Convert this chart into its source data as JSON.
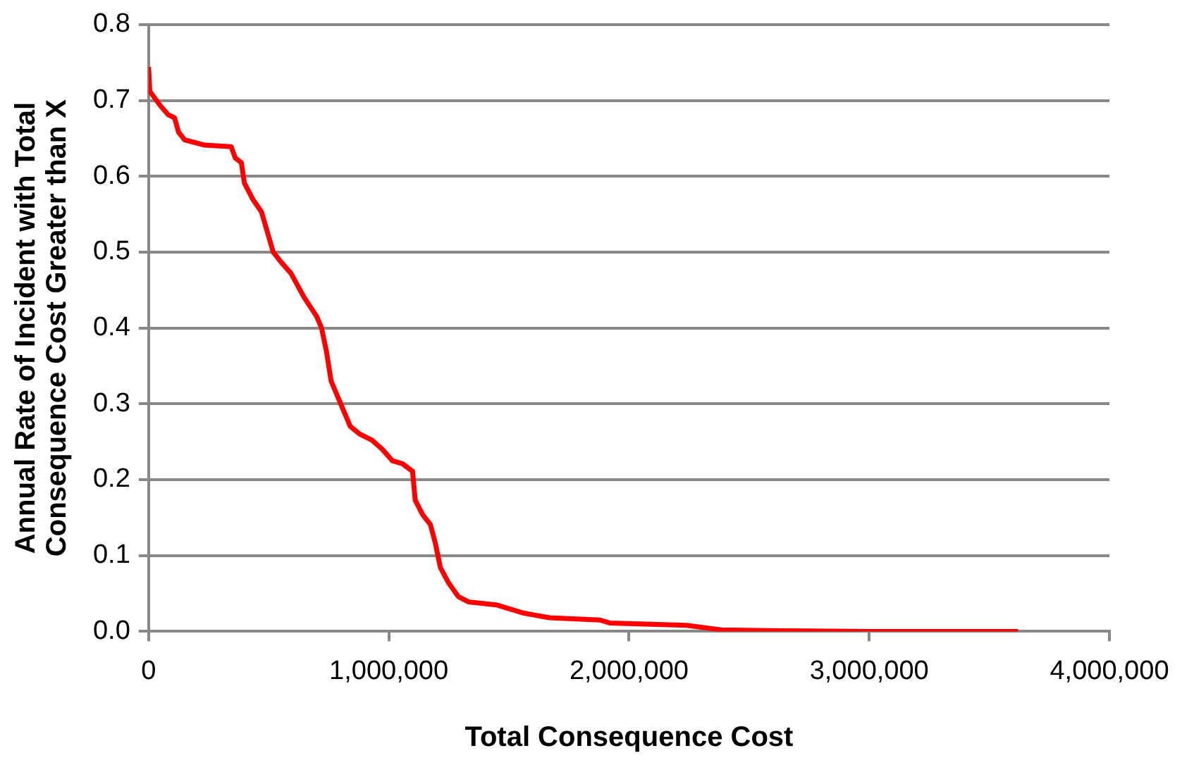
{
  "chart_data": {
    "type": "line",
    "xlabel": "Total Consequence Cost",
    "ylabel": "Annual Rate of Incident with Total\nConsequence Cost Greater than X",
    "x": [
      0,
      5000,
      49000,
      82000,
      108000,
      125000,
      150000,
      234000,
      344000,
      361000,
      386000,
      399000,
      435000,
      470000,
      519000,
      551000,
      593000,
      646000,
      700000,
      720000,
      740000,
      760000,
      800000,
      840000,
      880000,
      930000,
      973000,
      1015000,
      1057000,
      1099000,
      1110000,
      1141000,
      1173000,
      1194000,
      1215000,
      1247000,
      1289000,
      1331000,
      1447000,
      1563000,
      1669000,
      1880000,
      1922000,
      2238000,
      2386000,
      2576000,
      3000000,
      3620000
    ],
    "series": [
      {
        "color": "#ff0000",
        "values": [
          0.744,
          0.712,
          0.693,
          0.681,
          0.677,
          0.658,
          0.648,
          0.641,
          0.639,
          0.624,
          0.618,
          0.591,
          0.569,
          0.553,
          0.5,
          0.487,
          0.472,
          0.441,
          0.415,
          0.4,
          0.37,
          0.33,
          0.3,
          0.27,
          0.26,
          0.252,
          0.24,
          0.225,
          0.221,
          0.211,
          0.173,
          0.154,
          0.141,
          0.116,
          0.084,
          0.065,
          0.046,
          0.039,
          0.035,
          0.024,
          0.018,
          0.015,
          0.011,
          0.008,
          0.002,
          0.001,
          0.0,
          0.0
        ]
      }
    ],
    "xlim": [
      0,
      4000000
    ],
    "xticks": [
      0,
      {
        "value": 1000000,
        "label": "1,000,000"
      },
      {
        "value": 2000000,
        "label": "2,000,000"
      },
      {
        "value": 3000000,
        "label": "3,000,000"
      },
      {
        "value": 4000000,
        "label": "4,000,000"
      }
    ],
    "ylim": [
      0,
      0.8
    ],
    "yticks": [
      {
        "value": 0,
        "label": "0.0"
      },
      0.1,
      0.2,
      0.3,
      0.4,
      0.5,
      0.6,
      0.7,
      0.8
    ],
    "grid": "y",
    "legend": false,
    "marker": "none",
    "line_style": "solid"
  }
}
